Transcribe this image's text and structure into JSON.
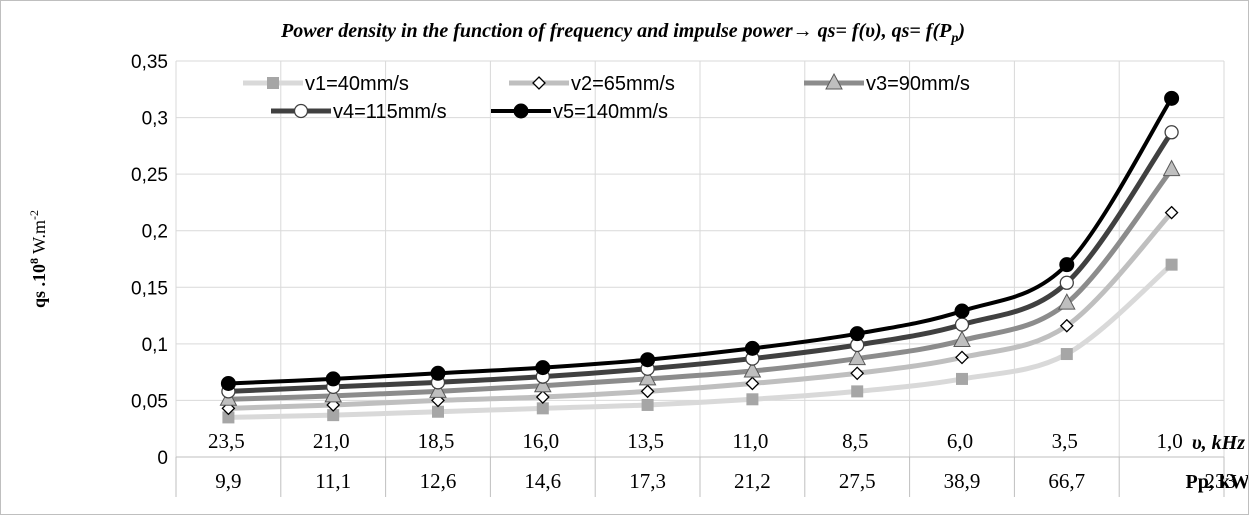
{
  "chart_data": {
    "type": "line",
    "title": "Power density in the function of frequency and impulse power→  qs= f(υ),  qs= f(P",
    "title_sub": "p",
    "title_close": ")",
    "ylabel_main": "qs .10",
    "ylabel_sup": "8",
    "ylabel_unit": " W.m",
    "ylabel_unit_sup": "-2",
    "x_axis_label_1": "υ, kHz",
    "x_axis_label_2": "Pp, kW",
    "categories": [
      "23,5",
      "21,0",
      "18,5",
      "16,0",
      "13,5",
      "11,0",
      "8,5",
      "6,0",
      "3,5",
      "1,0"
    ],
    "categories_secondary": [
      "9,9",
      "11,1",
      "12,6",
      "14,6",
      "17,3",
      "21,2",
      "27,5",
      "38,9",
      "66,7",
      "233"
    ],
    "y_ticks": [
      "0",
      "0,05",
      "0,1",
      "0,15",
      "0,2",
      "0,25",
      "0,3",
      "0,35"
    ],
    "ylim": [
      0,
      0.35
    ],
    "grid": true,
    "legend_position": "top",
    "series": [
      {
        "name": "v1=40mm/s",
        "color": "#d9d9d9",
        "marker": "square",
        "marker_color": "#a6a6a6",
        "values": [
          0.035,
          0.037,
          0.04,
          0.043,
          0.046,
          0.051,
          0.058,
          0.069,
          0.091,
          0.17
        ]
      },
      {
        "name": "v2=65mm/s",
        "color": "#bfbfbf",
        "marker": "diamond",
        "marker_color": "#ffffff",
        "values": [
          0.043,
          0.046,
          0.05,
          0.053,
          0.058,
          0.065,
          0.074,
          0.088,
          0.116,
          0.216
        ]
      },
      {
        "name": "v3=90mm/s",
        "color": "#8c8c8c",
        "marker": "triangle",
        "marker_color": "#bfbfbf",
        "values": [
          0.051,
          0.054,
          0.058,
          0.063,
          0.069,
          0.076,
          0.087,
          0.103,
          0.136,
          0.254
        ]
      },
      {
        "name": "v4=115mm/s",
        "color": "#404040",
        "marker": "circle-open",
        "marker_color": "#ffffff",
        "values": [
          0.058,
          0.062,
          0.066,
          0.071,
          0.078,
          0.087,
          0.099,
          0.117,
          0.154,
          0.287
        ]
      },
      {
        "name": "v5=140mm/s",
        "color": "#000000",
        "marker": "circle",
        "marker_color": "#000000",
        "values": [
          0.065,
          0.069,
          0.074,
          0.079,
          0.086,
          0.096,
          0.109,
          0.129,
          0.17,
          0.317
        ]
      }
    ]
  }
}
